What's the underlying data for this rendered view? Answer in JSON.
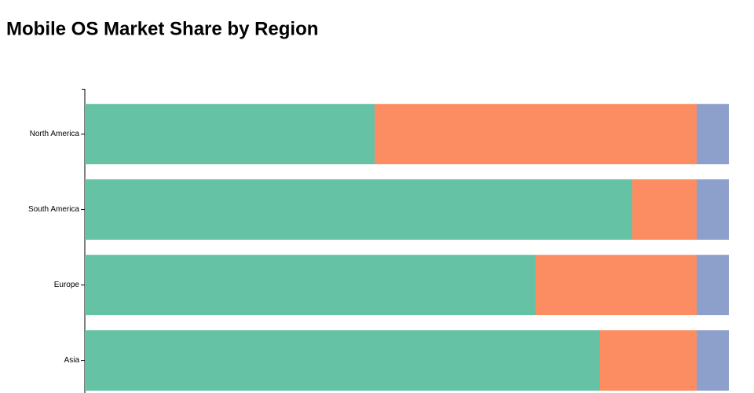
{
  "chart_data": {
    "type": "stacked-bar-horizontal",
    "title": "Mobile OS Market Share by Region",
    "categories": [
      "North America",
      "South America",
      "Europe",
      "Asia"
    ],
    "series": [
      {
        "color": "#66c2a5",
        "values": [
          45,
          85,
          70,
          80
        ]
      },
      {
        "color": "#fc8d62",
        "values": [
          50,
          10,
          25,
          15
        ]
      },
      {
        "color": "#8da0cb",
        "values": [
          5,
          5,
          5,
          5
        ]
      }
    ]
  }
}
